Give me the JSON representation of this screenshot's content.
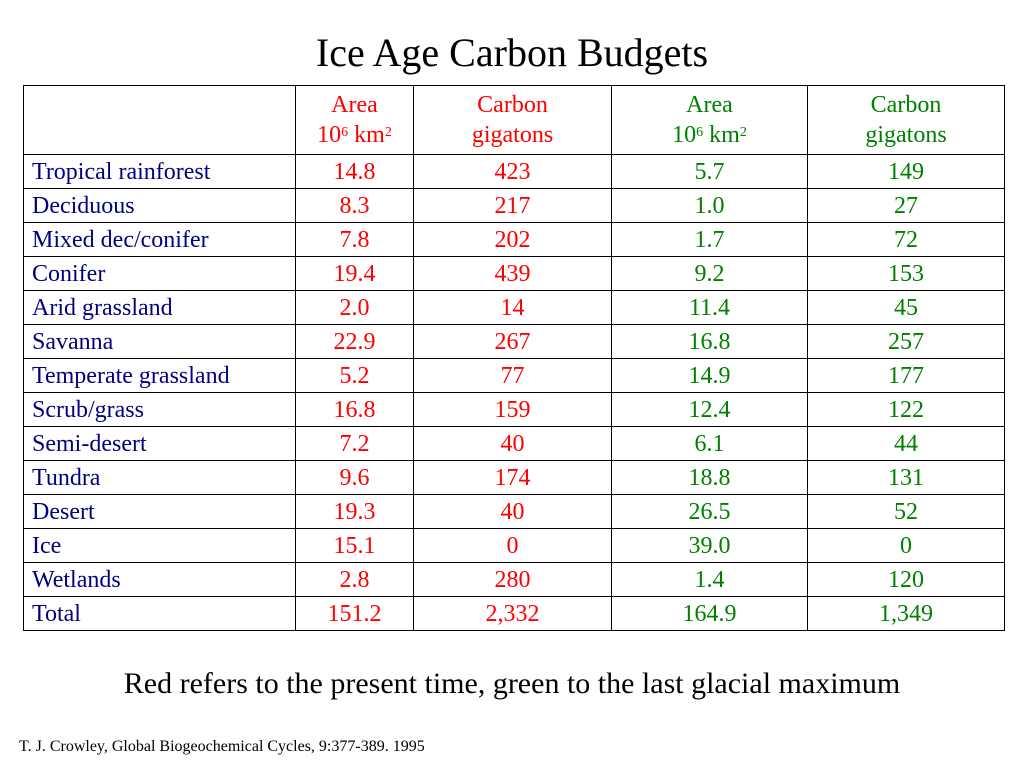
{
  "title": "Ice Age Carbon Budgets",
  "headers": {
    "present_area": {
      "line1": "Area",
      "base": "10",
      "exp": "6",
      "unit": " km",
      "unit_exp": "2"
    },
    "present_carbon": {
      "line1": "Carbon",
      "line2": "gigatons"
    },
    "glacial_area": {
      "line1": "Area",
      "base": "10",
      "exp": "6",
      "unit": " km",
      "unit_exp": "2"
    },
    "glacial_carbon": {
      "line1": "Carbon",
      "line2": "gigatons"
    }
  },
  "rows": [
    {
      "name": "Tropical rainforest",
      "present_area": "14.8",
      "present_carbon": "423",
      "glacial_area": "5.7",
      "glacial_carbon": "149"
    },
    {
      "name": "Deciduous",
      "present_area": "8.3",
      "present_carbon": "217",
      "glacial_area": "1.0",
      "glacial_carbon": "27"
    },
    {
      "name": "Mixed dec/conifer",
      "present_area": "7.8",
      "present_carbon": "202",
      "glacial_area": "1.7",
      "glacial_carbon": "72"
    },
    {
      "name": "Conifer",
      "present_area": "19.4",
      "present_carbon": "439",
      "glacial_area": "9.2",
      "glacial_carbon": "153"
    },
    {
      "name": "Arid grassland",
      "present_area": "2.0",
      "present_carbon": "14",
      "glacial_area": "11.4",
      "glacial_carbon": "45"
    },
    {
      "name": "Savanna",
      "present_area": "22.9",
      "present_carbon": "267",
      "glacial_area": "16.8",
      "glacial_carbon": "257"
    },
    {
      "name": "Temperate grassland",
      "present_area": "5.2",
      "present_carbon": "77",
      "glacial_area": "14.9",
      "glacial_carbon": "177"
    },
    {
      "name": "Scrub/grass",
      "present_area": "16.8",
      "present_carbon": "159",
      "glacial_area": "12.4",
      "glacial_carbon": "122"
    },
    {
      "name": "Semi-desert",
      "present_area": "7.2",
      "present_carbon": "40",
      "glacial_area": "6.1",
      "glacial_carbon": "44"
    },
    {
      "name": "Tundra",
      "present_area": "9.6",
      "present_carbon": "174",
      "glacial_area": "18.8",
      "glacial_carbon": "131"
    },
    {
      "name": "Desert",
      "present_area": "19.3",
      "present_carbon": "40",
      "glacial_area": "26.5",
      "glacial_carbon": "52"
    },
    {
      "name": "Ice",
      "present_area": "15.1",
      "present_carbon": "0",
      "glacial_area": "39.0",
      "glacial_carbon": "0"
    },
    {
      "name": "Wetlands",
      "present_area": "2.8",
      "present_carbon": "280",
      "glacial_area": "1.4",
      "glacial_carbon": "120"
    },
    {
      "name": "Total",
      "present_area": "151.2",
      "present_carbon": "2,332",
      "glacial_area": "164.9",
      "glacial_carbon": "1,349"
    }
  ],
  "note": "Red refers  to the present time, green to the last glacial maximum",
  "citation": "T. J. Crowley, Global Biogeochemical Cycles, 9:377-389. 1995",
  "colors": {
    "present": "#ff0000",
    "glacial": "#008000",
    "names": "#000080"
  }
}
